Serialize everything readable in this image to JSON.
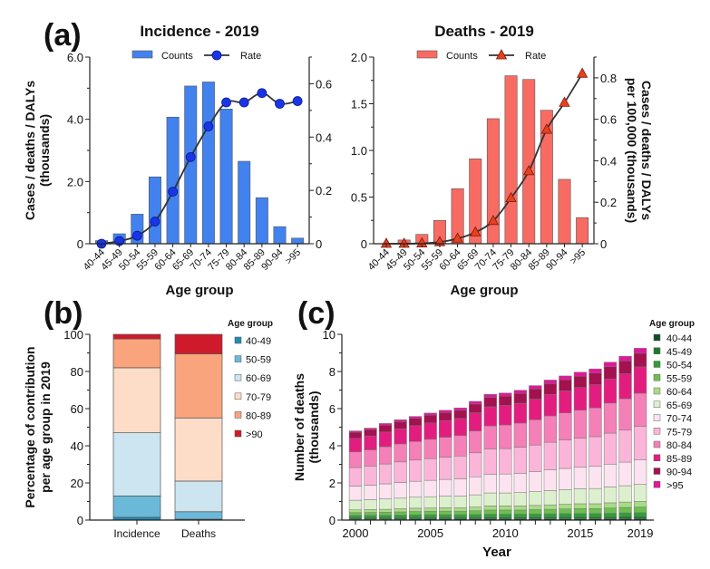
{
  "panel_labels": {
    "a": "(a)",
    "b": "(b)",
    "c": "(c)"
  },
  "chart_data": [
    {
      "id": "incidence",
      "type": "bar+line",
      "title": "Incidence - 2019",
      "xlabel": "Age group",
      "ylabel": [
        "Cases / deaths / DALYs",
        "(thousands)"
      ],
      "categories": [
        "40-44",
        "45-49",
        "50-54",
        "55-59",
        "60-64",
        "65-69",
        "70-74",
        "75-79",
        "80-84",
        "85-89",
        "90-94",
        ">95"
      ],
      "ylim": [
        0,
        6.0
      ],
      "yticks": [
        "0",
        "2.0",
        "4.0",
        "6.0"
      ],
      "y2lim": [
        0,
        0.7
      ],
      "y2ticks": [
        "0",
        "0.2",
        "0.4",
        "0.6"
      ],
      "legend": {
        "counts": "Counts",
        "rate": "Rate",
        "placement": "top"
      },
      "series": [
        {
          "name": "Counts",
          "axis": "left",
          "values": [
            0.1,
            0.32,
            0.95,
            2.15,
            4.07,
            5.07,
            5.2,
            4.33,
            2.65,
            1.48,
            0.55,
            0.18
          ]
        },
        {
          "name": "Rate",
          "axis": "right",
          "marker": "circle",
          "values": [
            0.0,
            0.01,
            0.03,
            0.083,
            0.195,
            0.325,
            0.44,
            0.53,
            0.53,
            0.565,
            0.525,
            0.535
          ]
        }
      ],
      "colors": {
        "bar": "#4282ee",
        "marker": "#1a35e6",
        "line": "#333333"
      }
    },
    {
      "id": "deaths",
      "type": "bar+line",
      "title": "Deaths - 2019",
      "xlabel": "Age group",
      "y2label": [
        "Cases / deaths / DALYs",
        "per 100,000 (thousands)"
      ],
      "categories": [
        "40-44",
        "45-49",
        "50-54",
        "55-59",
        "60-64",
        "65-69",
        "70-74",
        "75-79",
        "80-84",
        "85-89",
        "90-94",
        ">95"
      ],
      "ylim": [
        0,
        2.0
      ],
      "yticks": [
        "0",
        "0.5",
        "1.0",
        "1.5",
        "2.0"
      ],
      "y2lim": [
        0,
        0.9
      ],
      "y2ticks": [
        "0",
        "0.2",
        "0.4",
        "0.6",
        "0.8"
      ],
      "legend": {
        "counts": "Counts",
        "rate": "Rate",
        "placement": "top"
      },
      "series": [
        {
          "name": "Counts",
          "axis": "left",
          "values": [
            0.0,
            0.04,
            0.1,
            0.25,
            0.59,
            0.91,
            1.34,
            1.8,
            1.76,
            1.43,
            0.69,
            0.28
          ]
        },
        {
          "name": "Rate",
          "axis": "right",
          "marker": "triangle",
          "values": [
            0.0,
            0.0,
            0.002,
            0.008,
            0.025,
            0.055,
            0.11,
            0.22,
            0.35,
            0.55,
            0.68,
            0.82
          ]
        }
      ],
      "colors": {
        "bar": "#f86b63",
        "marker": "#e8401f",
        "line": "#333333"
      }
    },
    {
      "id": "contribution",
      "type": "stacked-bar",
      "ylabel": [
        "Percentage of contribution",
        "per age group in 2019"
      ],
      "categories": [
        "Incidence",
        "Deaths"
      ],
      "ylim": [
        0,
        100
      ],
      "yticks": [
        "0",
        "20",
        "40",
        "60",
        "80",
        "100"
      ],
      "legend_title": "Age group",
      "legend_placement": "right",
      "series": [
        {
          "name": "40-49",
          "color": "#1f8db5",
          "values": [
            1.5,
            0.5
          ]
        },
        {
          "name": "50-59",
          "color": "#6bb9d9",
          "values": [
            11.5,
            4.0
          ]
        },
        {
          "name": "60-69",
          "color": "#cce5f0",
          "values": [
            34.0,
            16.5
          ]
        },
        {
          "name": "70-79",
          "color": "#fddcc8",
          "values": [
            35.0,
            34.0
          ]
        },
        {
          "name": "80-89",
          "color": "#f9a47c",
          "values": [
            15.5,
            34.5
          ]
        },
        {
          "name": ">90",
          "color": "#cf1a2b",
          "values": [
            2.5,
            10.5
          ]
        }
      ]
    },
    {
      "id": "deaths-by-year",
      "type": "stacked-bar",
      "xlabel": "Year",
      "ylabel": [
        "Number of deaths",
        "(thousands)"
      ],
      "x": [
        2000,
        2001,
        2002,
        2003,
        2004,
        2005,
        2006,
        2007,
        2008,
        2009,
        2010,
        2011,
        2012,
        2013,
        2014,
        2015,
        2016,
        2017,
        2018,
        2019
      ],
      "xticks": [
        "2000",
        "2005",
        "2010",
        "2015",
        "2019"
      ],
      "ylim": [
        0,
        10
      ],
      "yticks": [
        "0",
        "2",
        "4",
        "6",
        "8",
        "10"
      ],
      "legend_title": "Age group",
      "legend_placement": "right",
      "series": [
        {
          "name": "40-44",
          "color": "#0f4d25",
          "values": [
            0.05,
            0.05,
            0.05,
            0.05,
            0.06,
            0.06,
            0.06,
            0.06,
            0.06,
            0.06,
            0.06,
            0.06,
            0.07,
            0.07,
            0.07,
            0.07,
            0.07,
            0.07,
            0.08,
            0.08
          ]
        },
        {
          "name": "45-49",
          "color": "#1b7a2b",
          "values": [
            0.08,
            0.08,
            0.08,
            0.09,
            0.09,
            0.09,
            0.09,
            0.09,
            0.09,
            0.1,
            0.1,
            0.1,
            0.1,
            0.1,
            0.11,
            0.11,
            0.11,
            0.11,
            0.12,
            0.12
          ]
        },
        {
          "name": "50-54",
          "color": "#2f9e36",
          "values": [
            0.12,
            0.12,
            0.13,
            0.13,
            0.13,
            0.14,
            0.14,
            0.14,
            0.15,
            0.16,
            0.16,
            0.16,
            0.16,
            0.17,
            0.17,
            0.18,
            0.18,
            0.19,
            0.19,
            0.2
          ]
        },
        {
          "name": "55-59",
          "color": "#6cbf4f",
          "values": [
            0.15,
            0.16,
            0.16,
            0.17,
            0.18,
            0.18,
            0.19,
            0.19,
            0.2,
            0.22,
            0.22,
            0.22,
            0.23,
            0.24,
            0.25,
            0.26,
            0.26,
            0.28,
            0.29,
            0.3
          ]
        },
        {
          "name": "60-64",
          "color": "#a8dc84",
          "values": [
            0.15,
            0.16,
            0.16,
            0.17,
            0.18,
            0.18,
            0.19,
            0.19,
            0.2,
            0.22,
            0.22,
            0.22,
            0.23,
            0.24,
            0.25,
            0.26,
            0.26,
            0.28,
            0.29,
            0.3
          ]
        },
        {
          "name": "65-69",
          "color": "#ddf0cd",
          "values": [
            0.52,
            0.53,
            0.56,
            0.57,
            0.59,
            0.61,
            0.62,
            0.63,
            0.66,
            0.7,
            0.7,
            0.72,
            0.74,
            0.77,
            0.79,
            0.8,
            0.82,
            0.85,
            0.88,
            0.92
          ]
        },
        {
          "name": "70-74",
          "color": "#fde3f0",
          "values": [
            0.76,
            0.78,
            0.81,
            0.84,
            0.86,
            0.88,
            0.9,
            0.92,
            0.97,
            1.01,
            1.02,
            1.04,
            1.07,
            1.11,
            1.14,
            1.16,
            1.19,
            1.23,
            1.27,
            1.33
          ]
        },
        {
          "name": "75-79",
          "color": "#fbb5d8",
          "values": [
            1.0,
            1.03,
            1.07,
            1.11,
            1.14,
            1.17,
            1.2,
            1.23,
            1.29,
            1.35,
            1.37,
            1.4,
            1.44,
            1.49,
            1.53,
            1.57,
            1.6,
            1.67,
            1.72,
            1.8
          ]
        },
        {
          "name": "80-84",
          "color": "#f480b7",
          "values": [
            0.84,
            0.87,
            0.93,
            0.97,
            1.0,
            1.04,
            1.07,
            1.1,
            1.18,
            1.25,
            1.27,
            1.3,
            1.36,
            1.42,
            1.46,
            1.51,
            1.55,
            1.62,
            1.69,
            1.78
          ]
        },
        {
          "name": "85-89",
          "color": "#e31d7f",
          "values": [
            0.73,
            0.75,
            0.79,
            0.82,
            0.85,
            0.88,
            0.9,
            0.92,
            0.98,
            1.03,
            1.05,
            1.07,
            1.11,
            1.16,
            1.19,
            1.22,
            1.25,
            1.3,
            1.35,
            1.42
          ]
        },
        {
          "name": "90-94",
          "color": "#a3114f",
          "values": [
            0.33,
            0.34,
            0.37,
            0.38,
            0.4,
            0.42,
            0.43,
            0.44,
            0.47,
            0.51,
            0.51,
            0.53,
            0.55,
            0.58,
            0.6,
            0.61,
            0.63,
            0.66,
            0.69,
            0.73
          ]
        },
        {
          "name": ">95",
          "color": "#e0179b",
          "values": [
            0.07,
            0.08,
            0.09,
            0.1,
            0.1,
            0.11,
            0.12,
            0.13,
            0.14,
            0.16,
            0.16,
            0.17,
            0.18,
            0.19,
            0.2,
            0.21,
            0.22,
            0.24,
            0.25,
            0.27
          ]
        }
      ]
    }
  ]
}
